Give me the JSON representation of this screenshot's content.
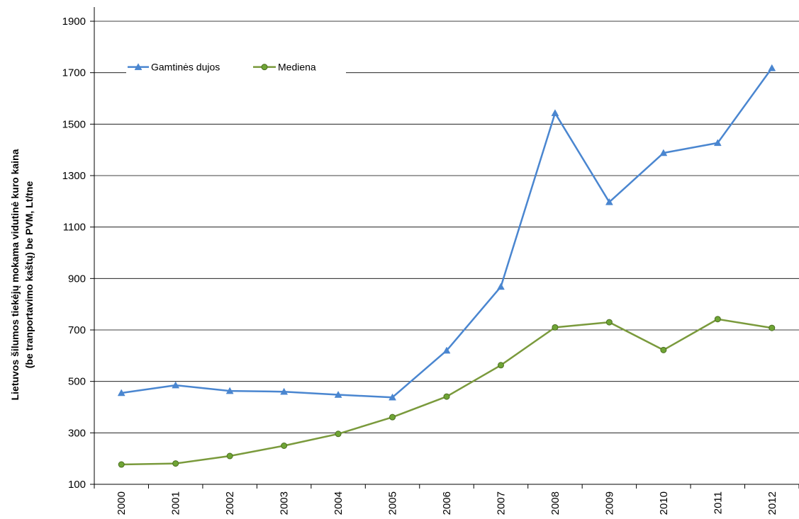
{
  "chart_data": {
    "type": "line",
    "title": "",
    "xlabel": "",
    "ylabel_lines": [
      "Lietuvos šilumos tiekėjų mokama vidutinė kuro kaina",
      "(be tranportavimo kaštų) be PVM,  Lt/tne"
    ],
    "ylim": [
      100,
      1900
    ],
    "yticks": [
      100,
      300,
      500,
      700,
      900,
      1100,
      1300,
      1500,
      1700,
      1900
    ],
    "grid": "horizontal",
    "legend_position": "top-left",
    "categories": [
      "2000",
      "2001",
      "2002",
      "2003",
      "2004",
      "2005",
      "2006",
      "2007",
      "2008",
      "2009",
      "2010",
      "2011",
      "2012"
    ],
    "series": [
      {
        "name": "Gamtinės dujos",
        "color": "#4a86d0",
        "marker": "triangle",
        "values": [
          455,
          485,
          463,
          460,
          448,
          438,
          620,
          868,
          1543,
          1197,
          1388,
          1427,
          1718
        ]
      },
      {
        "name": "Mediena",
        "color": "#7a9a3c",
        "marker_fill": "#6fa535",
        "marker": "circle",
        "values": [
          177,
          181,
          210,
          250,
          296,
          361,
          441,
          563,
          710,
          730,
          622,
          742,
          708
        ]
      }
    ]
  }
}
